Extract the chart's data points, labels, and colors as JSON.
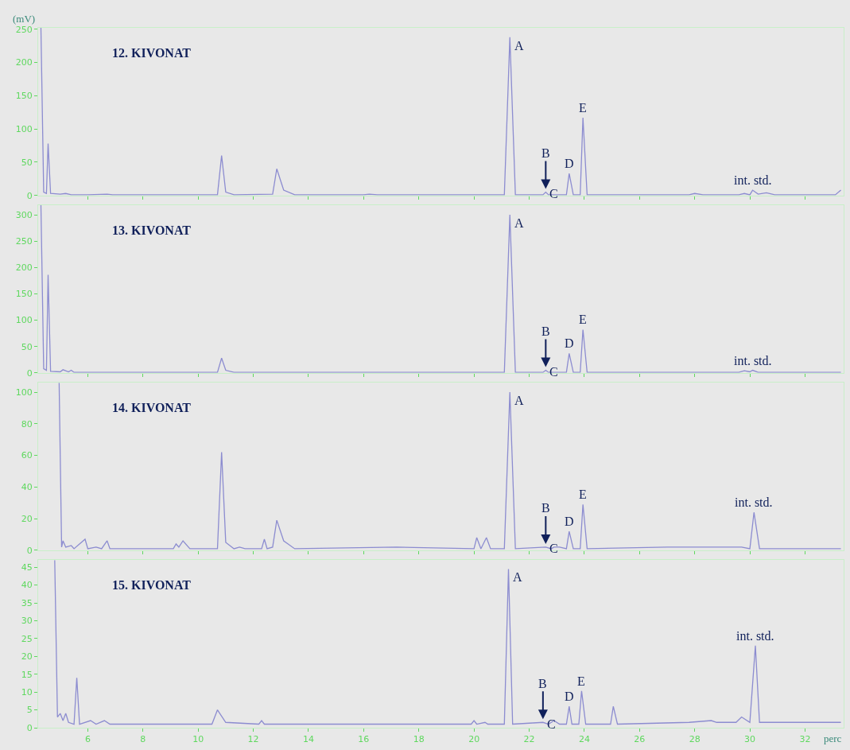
{
  "chart_data": [
    {
      "type": "line",
      "title": "12. KIVONAT",
      "ylabel": "(mV)",
      "color": "#8c8cd0",
      "grid": false,
      "tick_labels": "y",
      "xlim": [
        4.2,
        33.4
      ],
      "ylim": [
        0,
        252
      ],
      "xticks": [
        6,
        8,
        10,
        12,
        14,
        16,
        18,
        20,
        22,
        24,
        26,
        28,
        30,
        32
      ],
      "yticks": [
        0,
        50,
        100,
        150,
        200,
        250
      ],
      "x": [
        4.3,
        4.4,
        4.5,
        4.56,
        4.65,
        5.0,
        5.2,
        5.4,
        6.0,
        6.7,
        6.9,
        10.7,
        10.85,
        11.0,
        11.3,
        12.7,
        12.85,
        13.1,
        13.5,
        16.0,
        16.2,
        16.5,
        21.1,
        21.3,
        21.5,
        22.5,
        22.6,
        22.7,
        23.35,
        23.45,
        23.6,
        23.85,
        23.95,
        24.1,
        25.5,
        27.8,
        28.0,
        28.3,
        29.6,
        29.8,
        30.0,
        30.1,
        30.3,
        30.6,
        30.9,
        33.1,
        33.3
      ],
      "values": [
        252,
        5,
        3,
        78,
        3,
        2,
        3,
        1,
        1,
        2,
        1,
        1,
        60,
        5,
        1,
        2,
        40,
        8,
        1,
        1,
        2,
        1,
        1,
        238,
        1,
        1,
        5,
        1,
        1,
        33,
        1,
        1,
        117,
        1,
        1,
        1,
        3,
        1,
        1,
        3,
        1,
        8,
        2,
        4,
        1,
        1,
        8
      ],
      "annotations": [
        {
          "text": "A",
          "x": 21.3,
          "y": 238
        },
        {
          "text": "B",
          "x": 22.6,
          "y": 5
        },
        {
          "text": "C",
          "x": 22.6,
          "y": 5
        },
        {
          "text": "D",
          "x": 23.45,
          "y": 33
        },
        {
          "text": "E",
          "x": 23.95,
          "y": 117
        },
        {
          "text": "int. std.",
          "x": 30.1,
          "y": 8
        }
      ]
    },
    {
      "type": "line",
      "title": "13. KIVONAT",
      "color": "#8c8cd0",
      "grid": false,
      "tick_labels": "y",
      "xlim": [
        4.2,
        33.4
      ],
      "ylim": [
        0,
        318
      ],
      "xticks": [
        6,
        8,
        10,
        12,
        14,
        16,
        18,
        20,
        22,
        24,
        26,
        28,
        30,
        32
      ],
      "yticks": [
        0,
        50,
        100,
        150,
        200,
        250,
        300
      ],
      "x": [
        4.3,
        4.4,
        4.5,
        4.56,
        4.65,
        5.0,
        5.1,
        5.3,
        5.4,
        5.5,
        6.0,
        10.7,
        10.85,
        11.0,
        11.3,
        16.0,
        21.1,
        21.3,
        21.5,
        22.5,
        22.6,
        22.7,
        23.35,
        23.45,
        23.6,
        23.85,
        23.95,
        24.1,
        29.6,
        29.8,
        30.0,
        30.1,
        30.3,
        33.3
      ],
      "values": [
        318,
        8,
        5,
        186,
        3,
        2,
        6,
        2,
        5,
        1,
        1,
        1,
        28,
        5,
        1,
        1,
        1,
        300,
        1,
        1,
        5,
        1,
        1,
        37,
        1,
        1,
        82,
        1,
        1,
        4,
        2,
        5,
        1,
        1
      ],
      "annotations": [
        {
          "text": "A",
          "x": 21.3,
          "y": 300
        },
        {
          "text": "B",
          "x": 22.6,
          "y": 5
        },
        {
          "text": "C",
          "x": 22.6,
          "y": 5
        },
        {
          "text": "D",
          "x": 23.45,
          "y": 37
        },
        {
          "text": "E",
          "x": 23.95,
          "y": 82
        },
        {
          "text": "int. std.",
          "x": 30.1,
          "y": 5
        }
      ]
    },
    {
      "type": "line",
      "title": "14. KIVONAT",
      "color": "#8c8cd0",
      "grid": false,
      "tick_labels": "y",
      "xlim": [
        4.2,
        33.4
      ],
      "ylim": [
        0,
        106
      ],
      "xticks": [
        6,
        8,
        10,
        12,
        14,
        16,
        18,
        20,
        22,
        24,
        26,
        28,
        30,
        32
      ],
      "yticks": [
        0,
        20,
        40,
        60,
        80,
        100
      ],
      "x": [
        4.96,
        5.05,
        5.1,
        5.2,
        5.4,
        5.5,
        5.9,
        6.0,
        6.3,
        6.5,
        6.7,
        6.8,
        9.1,
        9.2,
        9.3,
        9.45,
        9.7,
        10.7,
        10.85,
        11.0,
        11.3,
        11.5,
        11.7,
        12.3,
        12.4,
        12.5,
        12.7,
        12.85,
        13.1,
        13.5,
        17.2,
        20.0,
        20.1,
        20.25,
        20.45,
        20.6,
        21.1,
        21.3,
        21.5,
        22.6,
        22.8,
        22.9,
        23.1,
        23.35,
        23.45,
        23.6,
        23.85,
        23.95,
        24.1,
        27.0,
        29.7,
        30.0,
        30.15,
        30.35,
        33.3
      ],
      "values": [
        106,
        2,
        6,
        2,
        3,
        1,
        7,
        1,
        2,
        1,
        6,
        1,
        1,
        4,
        2,
        6,
        1,
        1,
        62,
        5,
        1,
        2,
        1,
        1,
        7,
        1,
        2,
        19,
        6,
        1,
        2,
        1,
        8,
        1,
        8,
        1,
        1,
        100,
        1,
        2,
        1,
        2,
        2,
        1,
        12,
        1,
        1,
        29,
        1,
        2,
        2,
        1,
        24,
        1,
        1
      ],
      "annotations": [
        {
          "text": "A",
          "x": 21.3,
          "y": 100
        },
        {
          "text": "B",
          "x": 22.6,
          "y": 2
        },
        {
          "text": "C",
          "x": 22.6,
          "y": 2
        },
        {
          "text": "D",
          "x": 23.45,
          "y": 12
        },
        {
          "text": "E",
          "x": 23.95,
          "y": 29
        },
        {
          "text": "int. std.",
          "x": 30.15,
          "y": 24
        }
      ]
    },
    {
      "type": "line",
      "title": "15. KIVONAT",
      "xlabel": "perc",
      "color": "#8c8cd0",
      "grid": false,
      "xlim": [
        4.2,
        33.4
      ],
      "ylim": [
        0,
        47
      ],
      "xticks": [
        6,
        8,
        10,
        12,
        14,
        16,
        18,
        20,
        22,
        24,
        26,
        28,
        30,
        32
      ],
      "yticks": [
        0,
        5,
        10,
        15,
        20,
        25,
        30,
        35,
        40,
        45
      ],
      "x": [
        4.8,
        4.9,
        5.0,
        5.1,
        5.2,
        5.3,
        5.5,
        5.6,
        5.7,
        6.1,
        6.3,
        6.6,
        6.8,
        10.5,
        10.7,
        11.0,
        12.2,
        12.3,
        12.4,
        19.9,
        20.0,
        20.1,
        20.4,
        20.5,
        21.1,
        21.25,
        21.4,
        22.5,
        22.7,
        22.9,
        23.1,
        23.35,
        23.45,
        23.55,
        23.8,
        23.9,
        24.05,
        24.95,
        25.05,
        25.2,
        27.8,
        28.6,
        28.8,
        29.5,
        29.7,
        30.0,
        30.2,
        30.35,
        33.3
      ],
      "values": [
        47,
        3,
        4,
        2,
        4,
        1.5,
        1,
        14,
        1,
        2,
        1,
        2,
        1,
        1,
        5,
        1.5,
        1,
        2,
        1,
        1,
        2,
        1,
        1.5,
        1,
        1,
        44.5,
        1,
        1.5,
        1,
        2,
        1,
        1,
        6,
        1,
        1,
        10.3,
        1,
        1,
        6,
        1,
        1.5,
        2,
        1.5,
        1.5,
        3,
        1.5,
        23,
        1.5,
        1.5
      ],
      "annotations": [
        {
          "text": "A",
          "x": 21.25,
          "y": 44.5
        },
        {
          "text": "B",
          "x": 22.5,
          "y": 1.5
        },
        {
          "text": "C",
          "x": 22.5,
          "y": 1.5
        },
        {
          "text": "D",
          "x": 23.45,
          "y": 6
        },
        {
          "text": "E",
          "x": 23.9,
          "y": 10.3
        },
        {
          "text": "int. std.",
          "x": 30.2,
          "y": 23
        }
      ]
    }
  ]
}
